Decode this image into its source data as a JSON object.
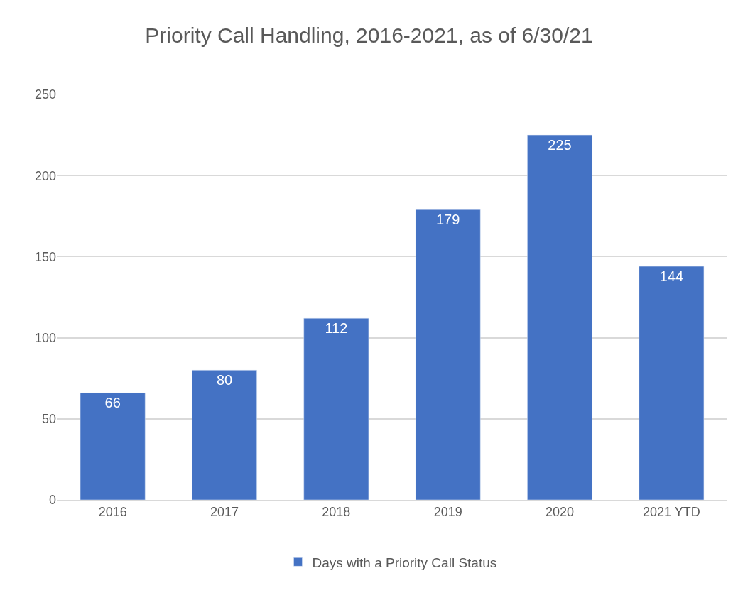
{
  "chart_data": {
    "type": "bar",
    "title": "Priority Call Handling, 2016-2021, as of 6/30/21",
    "categories": [
      "2016",
      "2017",
      "2018",
      "2019",
      "2020",
      "2021 YTD"
    ],
    "series": [
      {
        "name": "Days with a Priority Call Status",
        "color": "#4472c4",
        "values": [
          66,
          80,
          112,
          179,
          225,
          144
        ]
      }
    ],
    "ylim": [
      0,
      250
    ],
    "yticks": [
      0,
      50,
      100,
      150,
      200,
      250
    ],
    "grid": "y",
    "legend": "bottom",
    "data_labels": true
  }
}
